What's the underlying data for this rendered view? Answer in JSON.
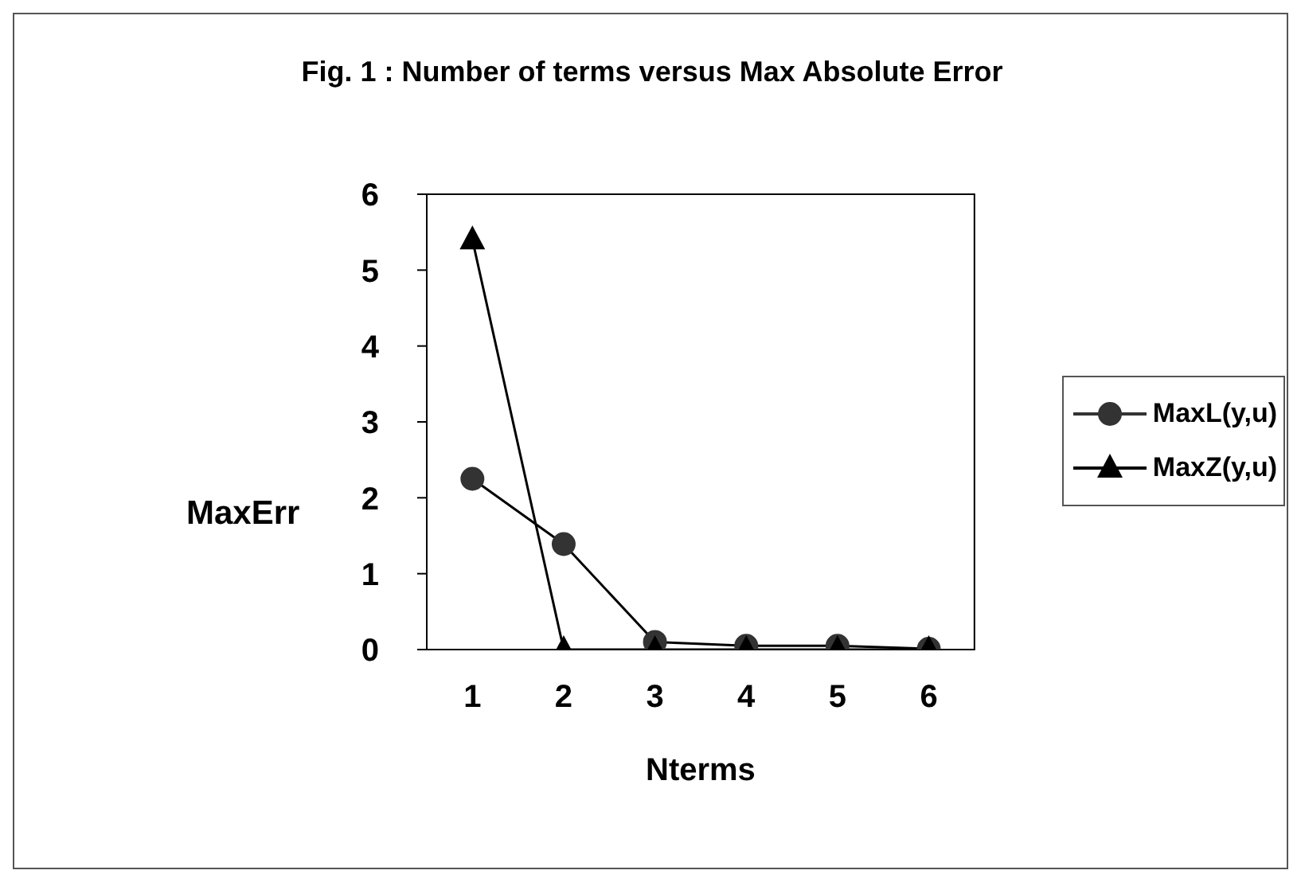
{
  "chart_data": {
    "type": "line",
    "title": "Fig. 1 : Number of terms versus  Max Absolute Error",
    "xlabel": "Nterms",
    "ylabel": "MaxErr",
    "categories": [
      "1",
      "2",
      "3",
      "4",
      "5",
      "6"
    ],
    "series": [
      {
        "name": "MaxL(y,u)",
        "color": "#333333",
        "marker": "circle",
        "values": [
          2.25,
          1.39,
          0.1,
          0.05,
          0.05,
          0.01
        ]
      },
      {
        "name": "MaxZ(y,u)",
        "color": "#000000",
        "marker": "triangle",
        "values": [
          5.4,
          0,
          0,
          0,
          0,
          0
        ]
      }
    ],
    "ylim": [
      0,
      6
    ],
    "yticks": [
      0,
      1,
      2,
      3,
      4,
      5,
      6
    ],
    "legend": "right",
    "line_style": "solid"
  }
}
